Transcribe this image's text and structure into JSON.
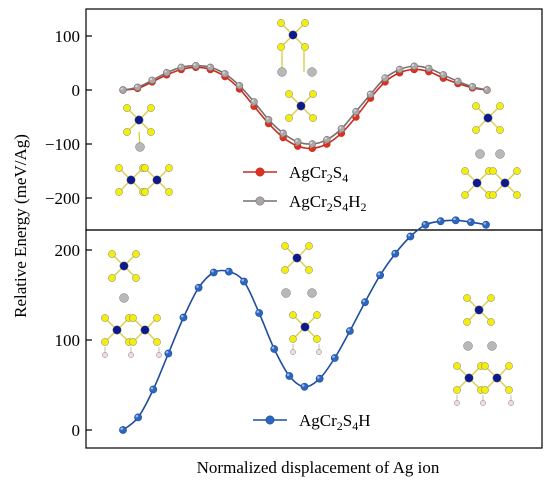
{
  "chart_data": [
    {
      "type": "line",
      "panel": "top",
      "ylabel": "Relative Energy (meV/Ag)",
      "xlabel": "",
      "ylim": [
        -250,
        150
      ],
      "yticks": [
        -200,
        -100,
        0,
        100
      ],
      "grid": false,
      "legend_position": "lower-center",
      "series": [
        {
          "name": "AgCr2S4",
          "name_parts": {
            "base": "AgCr",
            "sub1": "2",
            "mid": "S",
            "sub2": "4",
            "mid2": "",
            "sub3": ""
          },
          "color": "#cc2a20",
          "marker_color": "#d9321f",
          "values": [
            0,
            3,
            15,
            28,
            38,
            42,
            38,
            25,
            2,
            -30,
            -62,
            -88,
            -104,
            -108,
            -100,
            -80,
            -50,
            -15,
            15,
            32,
            38,
            34,
            22,
            12,
            4,
            0
          ]
        },
        {
          "name": "AgCr2S4H2",
          "name_parts": {
            "base": "AgCr",
            "sub1": "2",
            "mid": "S",
            "sub2": "4",
            "mid2": "H",
            "sub3": "2"
          },
          "color": "#7a6e6e",
          "marker_color": "#a8a8a8",
          "values": [
            0,
            5,
            18,
            32,
            42,
            45,
            42,
            30,
            8,
            -22,
            -55,
            -80,
            -96,
            -100,
            -92,
            -72,
            -40,
            -8,
            22,
            38,
            44,
            40,
            28,
            16,
            6,
            0
          ]
        }
      ]
    },
    {
      "type": "line",
      "panel": "bottom",
      "ylabel": "Relative Energy (meV/Ag)",
      "xlabel": "Normalized displacement of Ag ion",
      "ylim": [
        -20,
        260
      ],
      "yticks": [
        0,
        100,
        200
      ],
      "grid": false,
      "legend_position": "lower-center",
      "series": [
        {
          "name": "AgCr2S4H",
          "name_parts": {
            "base": "AgCr",
            "sub1": "2",
            "mid": "S",
            "sub2": "4",
            "mid2": "H",
            "sub3": ""
          },
          "color": "#1f4e9e",
          "marker_color": "#2b66c0",
          "values": [
            0,
            14,
            45,
            85,
            125,
            158,
            175,
            176,
            165,
            130,
            90,
            60,
            48,
            57,
            80,
            110,
            142,
            172,
            196,
            215,
            228,
            232,
            233,
            231,
            228
          ]
        }
      ]
    }
  ],
  "text": {
    "ylabel": "Relative Energy (meV/Ag)",
    "xlabel": "Normalized displacement of Ag ion"
  },
  "colors": {
    "sulfur": "#f2ee10",
    "chromium": "#0e1a8c",
    "silver": "#b8b8b8",
    "hydrogen": "#f3dcdc",
    "bond_s": "#d9d04a",
    "bond_dark": "#3a3a8a"
  }
}
